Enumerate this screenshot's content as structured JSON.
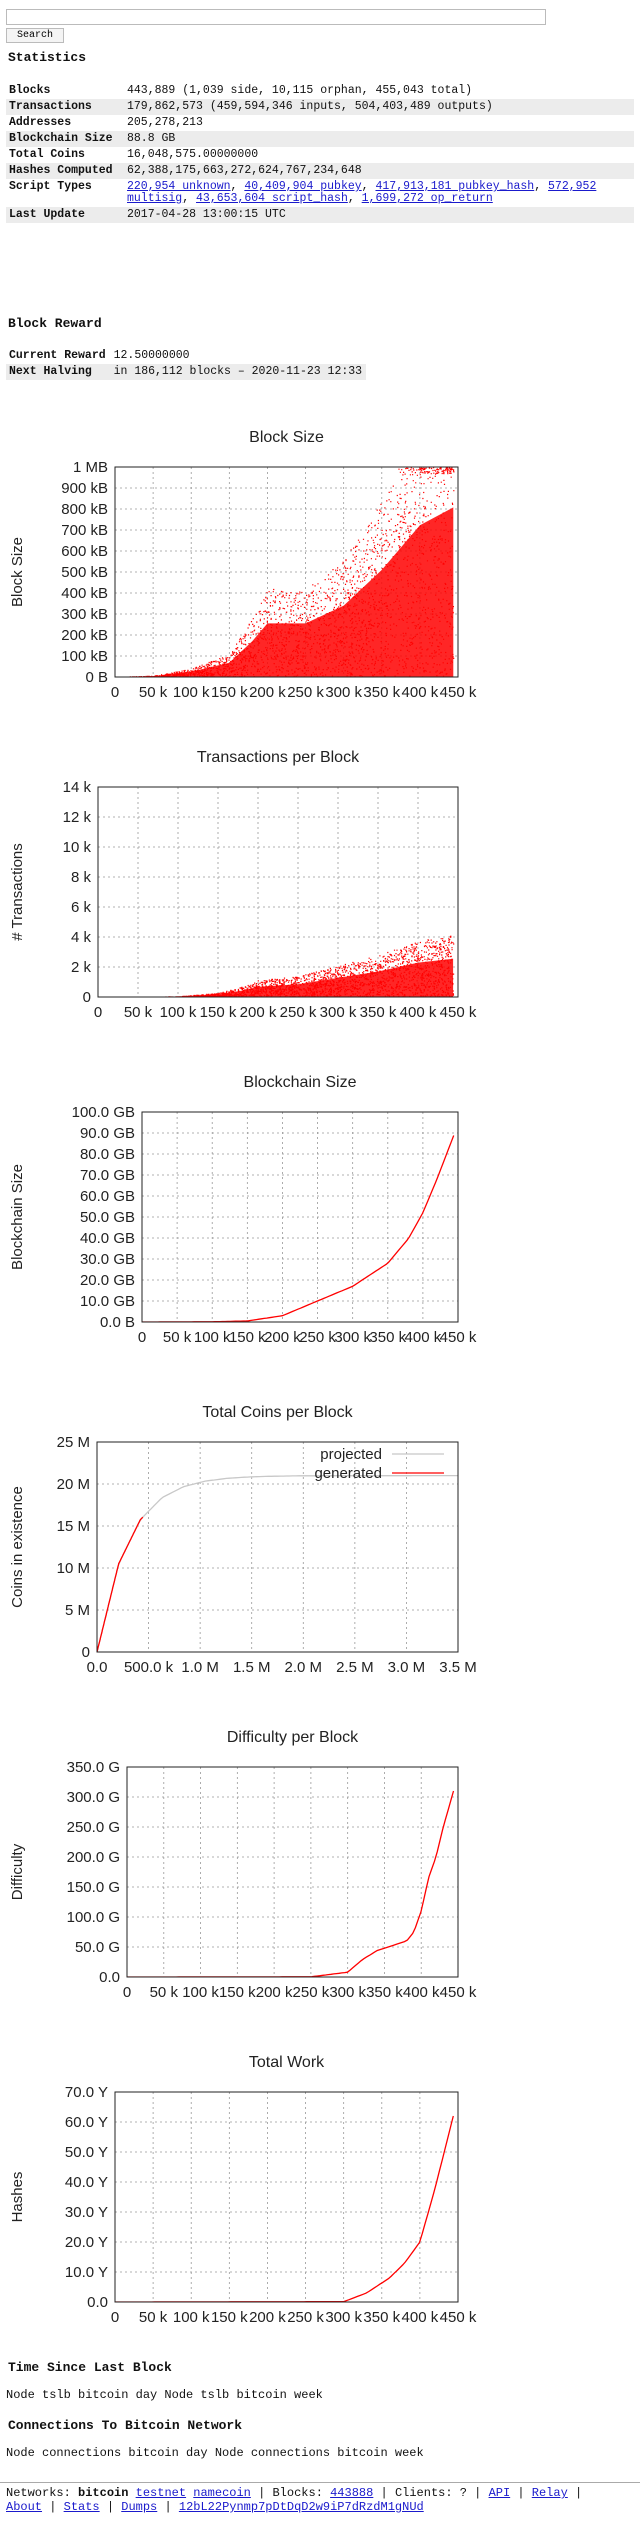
{
  "search": {
    "placeholder": "",
    "button_label": "Search"
  },
  "statistics": {
    "heading": "Statistics",
    "rows": [
      {
        "label": "Blocks",
        "value": "443,889 (1,039 side, 10,115 orphan, 455,043 total)"
      },
      {
        "label": "Transactions",
        "value": "179,862,573 (459,594,346 inputs, 504,403,489 outputs)"
      },
      {
        "label": "Addresses",
        "value": "205,278,213"
      },
      {
        "label": "Blockchain Size",
        "value": "88.8 GB"
      },
      {
        "label": "Total Coins",
        "value": "16,048,575.00000000"
      },
      {
        "label": "Hashes Computed",
        "value": "62,388,175,663,272,624,767,234,648"
      },
      {
        "label": "Script Types",
        "links": [
          "220,954 unknown",
          "40,409,904 pubkey",
          "417,913,181 pubkey_hash",
          "572,952 multisig",
          "43,653,604 script_hash",
          "1,699,272 op_return"
        ]
      },
      {
        "label": "Last Update",
        "value": "2017-04-28 13:00:15 UTC"
      }
    ]
  },
  "block_reward": {
    "heading": "Block Reward",
    "current_label": "Current Reward",
    "current_value": "12.50000000",
    "halving_label": "Next Halving",
    "halving_value": "in 186,112 blocks – 2020-11-23 12:33"
  },
  "chart_data": [
    {
      "type": "scatter",
      "title": "Block Size",
      "ylabel": "Block Size",
      "xlabel": "",
      "xlim": [
        0,
        450000
      ],
      "ylim": [
        0,
        1000000
      ],
      "xticks": [
        "0",
        "50 k",
        "100 k",
        "150 k",
        "200 k",
        "250 k",
        "300 k",
        "350 k",
        "400 k",
        "450 k"
      ],
      "yticks": [
        "0  B",
        "100 kB",
        "200 kB",
        "300 kB",
        "400 kB",
        "500 kB",
        "600 kB",
        "700 kB",
        "800 kB",
        "900 kB",
        "1 MB"
      ],
      "color": "#ff0000",
      "series": [
        {
          "x": [
            0,
            50000,
            100000,
            150000,
            180000,
            200000,
            250000,
            300000,
            350000,
            400000,
            443889
          ],
          "y": [
            1000,
            5000,
            30000,
            80000,
            200000,
            300000,
            300000,
            400000,
            600000,
            850000,
            950000
          ]
        }
      ]
    },
    {
      "type": "scatter",
      "title": "Transactions per Block",
      "ylabel": "# Transactions",
      "xlabel": "",
      "xlim": [
        0,
        450000
      ],
      "ylim": [
        0,
        14000
      ],
      "xticks": [
        "0",
        "50 k",
        "100 k",
        "150 k",
        "200 k",
        "250 k",
        "300 k",
        "350 k",
        "400 k",
        "450 k"
      ],
      "yticks": [
        "0",
        "2 k",
        "4 k",
        "6 k",
        "8 k",
        "10 k",
        "12 k",
        "14 k"
      ],
      "color": "#ff0000",
      "series": [
        {
          "x": [
            0,
            50000,
            100000,
            150000,
            180000,
            200000,
            250000,
            300000,
            350000,
            400000,
            443889
          ],
          "y": [
            1,
            5,
            40,
            200,
            500,
            800,
            1000,
            1500,
            2000,
            2700,
            3000
          ]
        }
      ]
    },
    {
      "type": "line",
      "title": "Blockchain Size",
      "ylabel": "Blockchain Size",
      "xlabel": "",
      "xlim": [
        0,
        450000
      ],
      "ylim": [
        0,
        100
      ],
      "xticks": [
        "0",
        "50 k",
        "100 k",
        "150 k",
        "200 k",
        "250 k",
        "300 k",
        "350 k",
        "400 k",
        "450 k"
      ],
      "yticks": [
        "0.0  B",
        "10.0 GB",
        "20.0 GB",
        "30.0 GB",
        "40.0 GB",
        "50.0 GB",
        "60.0 GB",
        "70.0 GB",
        "80.0 GB",
        "90.0 GB",
        "100.0 GB"
      ],
      "color": "#ff0000",
      "series": [
        {
          "x": [
            0,
            100000,
            150000,
            200000,
            250000,
            300000,
            350000,
            380000,
            400000,
            420000,
            443889
          ],
          "y": [
            0,
            0.1,
            0.5,
            3,
            10,
            17,
            28,
            40,
            52,
            68,
            88.8
          ]
        }
      ]
    },
    {
      "type": "line",
      "title": "Total Coins per Block",
      "ylabel": "Coins in existence",
      "xlabel": "",
      "xlim": [
        0,
        3500000
      ],
      "ylim": [
        0,
        25000000
      ],
      "xticks": [
        "0.0",
        "500.0 k",
        "1.0 M",
        "1.5 M",
        "2.0 M",
        "2.5 M",
        "3.0 M",
        "3.5 M"
      ],
      "yticks": [
        "0",
        "5 M",
        "10 M",
        "15 M",
        "20 M",
        "25 M"
      ],
      "legend": "top-right",
      "series": [
        {
          "name": "projected",
          "color": "#c8c8c8",
          "x": [
            0,
            210000,
            420000,
            630000,
            840000,
            1050000,
            1260000,
            1470000,
            1680000,
            2000000,
            3500000
          ],
          "y": [
            0,
            10500000,
            15750000,
            18375000,
            19687500,
            20343750,
            20671875,
            20835937,
            20917968,
            20980000,
            21000000
          ]
        },
        {
          "name": "generated",
          "color": "#ff0000",
          "x": [
            0,
            210000,
            420000,
            443889
          ],
          "y": [
            0,
            10500000,
            15750000,
            16048575
          ]
        }
      ]
    },
    {
      "type": "line",
      "title": "Difficulty per Block",
      "ylabel": "Difficulty",
      "xlabel": "",
      "xlim": [
        0,
        450000
      ],
      "ylim": [
        0,
        350
      ],
      "xticks": [
        "0",
        "50 k",
        "100 k",
        "150 k",
        "200 k",
        "250 k",
        "300 k",
        "350 k",
        "400 k",
        "450 k"
      ],
      "yticks": [
        "0.0",
        "50.0 G",
        "100.0 G",
        "150.0 G",
        "200.0 G",
        "250.0 G",
        "300.0 G",
        "350.0 G"
      ],
      "color": "#ff0000",
      "series": [
        {
          "x": [
            0,
            250000,
            300000,
            320000,
            340000,
            360000,
            380000,
            390000,
            400000,
            410000,
            420000,
            430000,
            443889
          ],
          "y": [
            0,
            0.3,
            8,
            29,
            44,
            52,
            60,
            75,
            110,
            165,
            200,
            250,
            310
          ]
        }
      ]
    },
    {
      "type": "line",
      "title": "Total Work",
      "ylabel": "Hashes",
      "xlabel": "",
      "xlim": [
        0,
        450000
      ],
      "ylim": [
        0,
        70
      ],
      "xticks": [
        "0",
        "50 k",
        "100 k",
        "150 k",
        "200 k",
        "250 k",
        "300 k",
        "350 k",
        "400 k",
        "450 k"
      ],
      "yticks": [
        "0.0",
        "10.0 Y",
        "20.0 Y",
        "30.0 Y",
        "40.0 Y",
        "50.0 Y",
        "60.0 Y",
        "70.0 Y"
      ],
      "color": "#ff0000",
      "series": [
        {
          "x": [
            0,
            300000,
            330000,
            360000,
            380000,
            400000,
            420000,
            443889
          ],
          "y": [
            0,
            0.1,
            3,
            8,
            13,
            20,
            38,
            62
          ]
        }
      ]
    }
  ],
  "time_since": {
    "heading": "Time Since Last Block",
    "text": "Node tslb bitcoin day Node tslb bitcoin week"
  },
  "connections": {
    "heading": "Connections To Bitcoin Network",
    "text": "Node connections bitcoin day Node connections bitcoin week"
  },
  "footer": {
    "networks_label": "Networks:",
    "network_current": "bitcoin",
    "network_links": [
      "testnet",
      "namecoin"
    ],
    "blocks_label": "Blocks:",
    "blocks_value": "443888",
    "clients_label": "Clients: ?",
    "links1": [
      "API",
      "Relay"
    ],
    "links2": [
      "About",
      "Stats",
      "Dumps"
    ],
    "address": "12bL22Pynmp7pDtDqD2w9iP7dRzdM1gNUd"
  }
}
